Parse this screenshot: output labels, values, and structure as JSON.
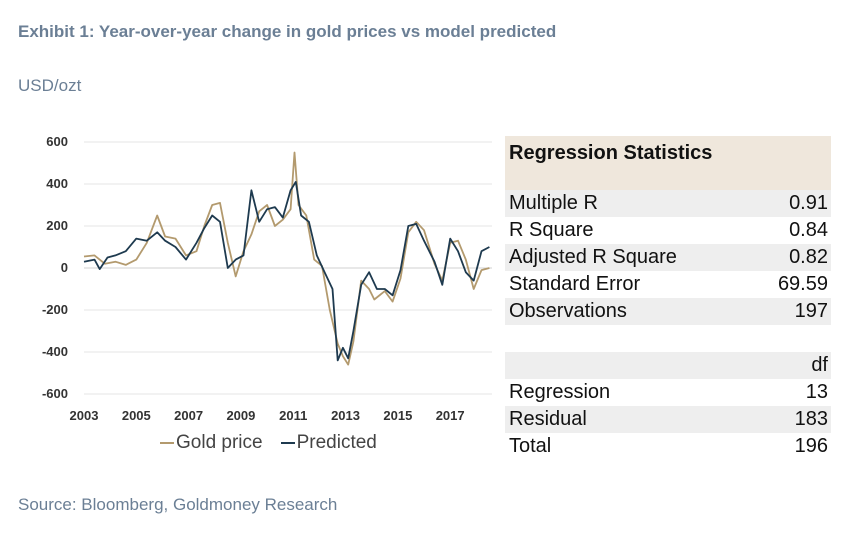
{
  "header": {
    "title": "Exhibit 1: Year-over-year change in gold prices vs model predicted",
    "unit": "USD/ozt",
    "source": "Source: Bloomberg, Goldmoney Research"
  },
  "colors": {
    "gold": "#b39a6e",
    "predicted": "#1e3a4f",
    "table_header_bg": "#efe7dc",
    "row_shade": "#eeeeee"
  },
  "chart_data": {
    "type": "line",
    "title": "",
    "xlabel": "",
    "ylabel": "USD/ozt",
    "ylim": [
      -600,
      600
    ],
    "xlim": [
      2003,
      2018.6
    ],
    "yticks": [
      "600",
      "400",
      "200",
      "0",
      "-200",
      "-400",
      "-600"
    ],
    "xticks": [
      "2003",
      "2005",
      "2007",
      "2009",
      "2011",
      "2013",
      "2015",
      "2017"
    ],
    "legend": {
      "position": "bottom",
      "entries": [
        "Gold price",
        "Predicted"
      ]
    },
    "grid": "horizontal",
    "series": [
      {
        "name": "Gold price",
        "color": "#b39a6e",
        "points": [
          [
            2003.0,
            55
          ],
          [
            2003.4,
            60
          ],
          [
            2003.8,
            20
          ],
          [
            2004.2,
            30
          ],
          [
            2004.6,
            15
          ],
          [
            2005.0,
            40
          ],
          [
            2005.4,
            120
          ],
          [
            2005.8,
            250
          ],
          [
            2006.1,
            150
          ],
          [
            2006.5,
            140
          ],
          [
            2006.9,
            60
          ],
          [
            2007.3,
            80
          ],
          [
            2007.6,
            200
          ],
          [
            2007.9,
            300
          ],
          [
            2008.2,
            310
          ],
          [
            2008.5,
            120
          ],
          [
            2008.8,
            -40
          ],
          [
            2009.1,
            80
          ],
          [
            2009.4,
            160
          ],
          [
            2009.7,
            270
          ],
          [
            2010.0,
            300
          ],
          [
            2010.3,
            200
          ],
          [
            2010.6,
            230
          ],
          [
            2010.9,
            280
          ],
          [
            2011.05,
            550
          ],
          [
            2011.2,
            300
          ],
          [
            2011.5,
            250
          ],
          [
            2011.8,
            40
          ],
          [
            2012.1,
            10
          ],
          [
            2012.4,
            -200
          ],
          [
            2012.7,
            -360
          ],
          [
            2012.9,
            -420
          ],
          [
            2013.1,
            -460
          ],
          [
            2013.3,
            -350
          ],
          [
            2013.6,
            -60
          ],
          [
            2013.9,
            -100
          ],
          [
            2014.1,
            -150
          ],
          [
            2014.5,
            -110
          ],
          [
            2014.8,
            -160
          ],
          [
            2015.1,
            -50
          ],
          [
            2015.4,
            170
          ],
          [
            2015.7,
            220
          ],
          [
            2016.0,
            180
          ],
          [
            2016.4,
            20
          ],
          [
            2016.7,
            -60
          ],
          [
            2017.0,
            120
          ],
          [
            2017.3,
            130
          ],
          [
            2017.6,
            40
          ],
          [
            2017.9,
            -100
          ],
          [
            2018.2,
            -10
          ],
          [
            2018.5,
            0
          ]
        ]
      },
      {
        "name": "Predicted",
        "color": "#1e3a4f",
        "points": [
          [
            2003.0,
            30
          ],
          [
            2003.4,
            40
          ],
          [
            2003.6,
            -5
          ],
          [
            2003.9,
            50
          ],
          [
            2004.2,
            60
          ],
          [
            2004.6,
            80
          ],
          [
            2005.0,
            140
          ],
          [
            2005.4,
            130
          ],
          [
            2005.8,
            170
          ],
          [
            2006.1,
            130
          ],
          [
            2006.5,
            100
          ],
          [
            2006.9,
            40
          ],
          [
            2007.3,
            120
          ],
          [
            2007.6,
            190
          ],
          [
            2007.9,
            250
          ],
          [
            2008.2,
            220
          ],
          [
            2008.5,
            0
          ],
          [
            2008.8,
            40
          ],
          [
            2009.1,
            60
          ],
          [
            2009.4,
            370
          ],
          [
            2009.7,
            220
          ],
          [
            2010.0,
            280
          ],
          [
            2010.3,
            290
          ],
          [
            2010.6,
            240
          ],
          [
            2010.9,
            370
          ],
          [
            2011.1,
            410
          ],
          [
            2011.3,
            250
          ],
          [
            2011.6,
            220
          ],
          [
            2011.9,
            60
          ],
          [
            2012.2,
            -20
          ],
          [
            2012.5,
            -100
          ],
          [
            2012.7,
            -440
          ],
          [
            2012.9,
            -380
          ],
          [
            2013.1,
            -430
          ],
          [
            2013.3,
            -300
          ],
          [
            2013.6,
            -80
          ],
          [
            2013.9,
            -20
          ],
          [
            2014.2,
            -100
          ],
          [
            2014.5,
            -100
          ],
          [
            2014.8,
            -130
          ],
          [
            2015.1,
            -10
          ],
          [
            2015.4,
            200
          ],
          [
            2015.7,
            210
          ],
          [
            2016.0,
            130
          ],
          [
            2016.4,
            30
          ],
          [
            2016.7,
            -80
          ],
          [
            2017.0,
            140
          ],
          [
            2017.3,
            80
          ],
          [
            2017.6,
            -20
          ],
          [
            2017.9,
            -60
          ],
          [
            2018.2,
            80
          ],
          [
            2018.5,
            100
          ]
        ]
      }
    ]
  },
  "table": {
    "header": "Regression Statistics",
    "rows": [
      {
        "label": "Multiple R",
        "value": "0.91"
      },
      {
        "label": "R Square",
        "value": "0.84"
      },
      {
        "label": "Adjusted R Square",
        "value": "0.82"
      },
      {
        "label": "Standard Error",
        "value": "69.59"
      },
      {
        "label": "Observations",
        "value": "197"
      }
    ],
    "anova_header": "df",
    "anova_rows": [
      {
        "label": "Regression",
        "value": "13"
      },
      {
        "label": "Residual",
        "value": "183"
      },
      {
        "label": "Total",
        "value": "196"
      }
    ]
  }
}
